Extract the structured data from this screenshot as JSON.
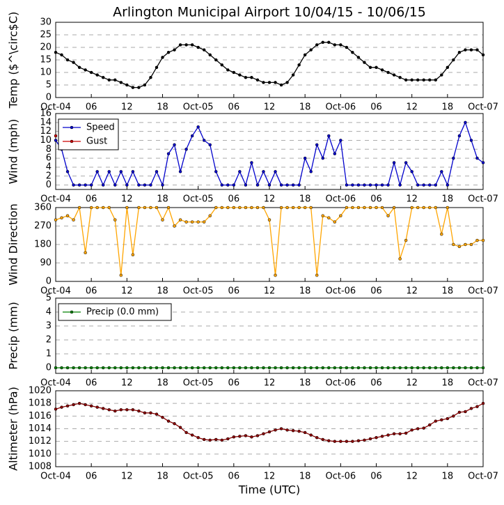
{
  "title": "Arlington Municipal Airport 10/04/15 - 10/06/15",
  "chart_data": [
    {
      "type": "line",
      "ylabel": "Temp ($^\\circ$C)",
      "x": [
        0,
        1,
        2,
        3,
        4,
        5,
        6,
        7,
        8,
        9,
        10,
        11,
        12,
        13,
        14,
        15,
        16,
        17,
        18,
        19,
        20,
        21,
        22,
        23,
        24,
        25,
        26,
        27,
        28,
        29,
        30,
        31,
        32,
        33,
        34,
        35,
        36,
        37,
        38,
        39,
        40,
        41,
        42,
        43,
        44,
        45,
        46,
        47,
        48,
        49,
        50,
        51,
        52,
        53,
        54,
        55,
        56,
        57,
        58,
        59,
        60,
        61,
        62,
        63,
        64,
        65,
        66,
        67,
        68,
        69,
        70,
        71,
        72
      ],
      "series": [
        {
          "name": "Temp",
          "color": "#000000",
          "values": [
            18,
            17,
            15,
            14,
            12,
            11,
            10,
            9,
            8,
            7,
            7,
            6,
            5,
            4,
            4,
            5,
            8,
            12,
            16,
            18,
            19,
            21,
            21,
            21,
            20,
            19,
            17,
            15,
            13,
            11,
            10,
            9,
            8,
            8,
            7,
            6,
            6,
            6,
            5,
            6,
            9,
            13,
            17,
            19,
            21,
            22,
            22,
            21,
            21,
            20,
            18,
            16,
            14,
            12,
            12,
            11,
            10,
            9,
            8,
            7,
            7,
            7,
            7,
            7,
            7,
            9,
            12,
            15,
            18,
            19,
            19,
            19,
            17
          ]
        }
      ],
      "xlim": [
        0,
        72
      ],
      "xticks": [
        {
          "value": 0,
          "label": "Oct-04"
        },
        {
          "value": 6,
          "label": "06"
        },
        {
          "value": 12,
          "label": "12"
        },
        {
          "value": 18,
          "label": "18"
        },
        {
          "value": 24,
          "label": "Oct-05"
        },
        {
          "value": 30,
          "label": "06"
        },
        {
          "value": 36,
          "label": "12"
        },
        {
          "value": 42,
          "label": "18"
        },
        {
          "value": 48,
          "label": "Oct-06"
        },
        {
          "value": 54,
          "label": "06"
        },
        {
          "value": 60,
          "label": "12"
        },
        {
          "value": 66,
          "label": "18"
        },
        {
          "value": 72,
          "label": "Oct-07"
        }
      ],
      "ylim": [
        0,
        30
      ],
      "yticks": [
        0,
        5,
        10,
        15,
        20,
        25,
        30
      ],
      "grid": true
    },
    {
      "type": "line",
      "ylabel": "Wind (mph)",
      "x": [
        0,
        1,
        2,
        3,
        4,
        5,
        6,
        7,
        8,
        9,
        10,
        11,
        12,
        13,
        14,
        15,
        16,
        17,
        18,
        19,
        20,
        21,
        22,
        23,
        24,
        25,
        26,
        27,
        28,
        29,
        30,
        31,
        32,
        33,
        34,
        35,
        36,
        37,
        38,
        39,
        40,
        41,
        42,
        43,
        44,
        45,
        46,
        47,
        48,
        49,
        50,
        51,
        52,
        53,
        54,
        55,
        56,
        57,
        58,
        59,
        60,
        61,
        62,
        63,
        64,
        65,
        66,
        67,
        68,
        69,
        70,
        71,
        72
      ],
      "series": [
        {
          "name": "Speed",
          "color": "#0000cc",
          "values": [
            10,
            8,
            3,
            0,
            0,
            0,
            0,
            3,
            0,
            3,
            0,
            3,
            0,
            3,
            0,
            0,
            0,
            3,
            0,
            7,
            9,
            3,
            8,
            11,
            13,
            10,
            9,
            3,
            0,
            0,
            0,
            3,
            0,
            5,
            0,
            3,
            0,
            3,
            0,
            0,
            0,
            0,
            6,
            3,
            9,
            6,
            11,
            7,
            10,
            0,
            0,
            0,
            0,
            0,
            0,
            0,
            0,
            5,
            0,
            5,
            3,
            0,
            0,
            0,
            0,
            3,
            0,
            6,
            11,
            14,
            10,
            6,
            5
          ]
        },
        {
          "name": "Gust",
          "color": "#cc0000",
          "values": [
            11,
            null,
            null,
            null,
            null,
            null,
            null,
            null,
            null,
            null,
            null,
            null,
            null,
            null,
            null,
            null,
            null,
            null,
            null,
            null,
            null,
            null,
            null,
            null,
            null,
            null,
            null,
            null,
            null,
            null,
            null,
            null,
            null,
            null,
            null,
            null,
            null,
            null,
            null,
            null,
            null,
            null,
            null,
            null,
            null,
            null,
            null,
            null,
            null,
            null,
            null,
            null,
            null,
            null,
            null,
            null,
            null,
            null,
            null,
            null,
            null,
            null,
            null,
            null,
            null,
            null,
            null,
            null,
            null,
            null,
            null,
            null,
            null
          ]
        }
      ],
      "xlim": [
        0,
        72
      ],
      "xticks": [
        {
          "value": 0,
          "label": "Oct-04"
        },
        {
          "value": 6,
          "label": "06"
        },
        {
          "value": 12,
          "label": "12"
        },
        {
          "value": 18,
          "label": "18"
        },
        {
          "value": 24,
          "label": "Oct-05"
        },
        {
          "value": 30,
          "label": "06"
        },
        {
          "value": 36,
          "label": "12"
        },
        {
          "value": 42,
          "label": "18"
        },
        {
          "value": 48,
          "label": "Oct-06"
        },
        {
          "value": 54,
          "label": "06"
        },
        {
          "value": 60,
          "label": "12"
        },
        {
          "value": 66,
          "label": "18"
        },
        {
          "value": 72,
          "label": "Oct-07"
        }
      ],
      "ylim": [
        -1,
        16
      ],
      "yticks": [
        0,
        2,
        4,
        6,
        8,
        10,
        12,
        14,
        16
      ],
      "grid": true,
      "legend": "upper left"
    },
    {
      "type": "line",
      "ylabel": "Wind Direction",
      "x": [
        0,
        1,
        2,
        3,
        4,
        5,
        6,
        7,
        8,
        9,
        10,
        11,
        12,
        13,
        14,
        15,
        16,
        17,
        18,
        19,
        20,
        21,
        22,
        23,
        24,
        25,
        26,
        27,
        28,
        29,
        30,
        31,
        32,
        33,
        34,
        35,
        36,
        37,
        38,
        39,
        40,
        41,
        42,
        43,
        44,
        45,
        46,
        47,
        48,
        49,
        50,
        51,
        52,
        53,
        54,
        55,
        56,
        57,
        58,
        59,
        60,
        61,
        62,
        63,
        64,
        65,
        66,
        67,
        68,
        69,
        70,
        71,
        72
      ],
      "series": [
        {
          "name": "Direction",
          "color": "#ffa500",
          "values": [
            300,
            310,
            320,
            300,
            360,
            140,
            360,
            360,
            360,
            360,
            300,
            30,
            360,
            130,
            360,
            360,
            360,
            360,
            300,
            360,
            270,
            300,
            290,
            290,
            290,
            290,
            320,
            360,
            360,
            360,
            360,
            360,
            360,
            360,
            360,
            360,
            300,
            30,
            360,
            360,
            360,
            360,
            360,
            360,
            30,
            320,
            310,
            290,
            320,
            360,
            360,
            360,
            360,
            360,
            360,
            360,
            320,
            360,
            110,
            200,
            360,
            360,
            360,
            360,
            360,
            230,
            360,
            180,
            170,
            180,
            180,
            200,
            200
          ]
        }
      ],
      "xlim": [
        0,
        72
      ],
      "xticks": [
        {
          "value": 0,
          "label": "Oct-04"
        },
        {
          "value": 6,
          "label": "06"
        },
        {
          "value": 12,
          "label": "12"
        },
        {
          "value": 18,
          "label": "18"
        },
        {
          "value": 24,
          "label": "Oct-05"
        },
        {
          "value": 30,
          "label": "06"
        },
        {
          "value": 36,
          "label": "12"
        },
        {
          "value": 42,
          "label": "18"
        },
        {
          "value": 48,
          "label": "Oct-06"
        },
        {
          "value": 54,
          "label": "06"
        },
        {
          "value": 60,
          "label": "12"
        },
        {
          "value": 66,
          "label": "18"
        },
        {
          "value": 72,
          "label": "Oct-07"
        }
      ],
      "ylim": [
        0,
        360
      ],
      "yticks": [
        0,
        90,
        180,
        270,
        360
      ],
      "grid": true
    },
    {
      "type": "line",
      "ylabel": "Precip (mm)",
      "x": [
        0,
        1,
        2,
        3,
        4,
        5,
        6,
        7,
        8,
        9,
        10,
        11,
        12,
        13,
        14,
        15,
        16,
        17,
        18,
        19,
        20,
        21,
        22,
        23,
        24,
        25,
        26,
        27,
        28,
        29,
        30,
        31,
        32,
        33,
        34,
        35,
        36,
        37,
        38,
        39,
        40,
        41,
        42,
        43,
        44,
        45,
        46,
        47,
        48,
        49,
        50,
        51,
        52,
        53,
        54,
        55,
        56,
        57,
        58,
        59,
        60,
        61,
        62,
        63,
        64,
        65,
        66,
        67,
        68,
        69,
        70,
        71,
        72
      ],
      "series": [
        {
          "name": "Precip (0.0 mm)",
          "color": "#008000",
          "values": [
            0,
            0,
            0,
            0,
            0,
            0,
            0,
            0,
            0,
            0,
            0,
            0,
            0,
            0,
            0,
            0,
            0,
            0,
            0,
            0,
            0,
            0,
            0,
            0,
            0,
            0,
            0,
            0,
            0,
            0,
            0,
            0,
            0,
            0,
            0,
            0,
            0,
            0,
            0,
            0,
            0,
            0,
            0,
            0,
            0,
            0,
            0,
            0,
            0,
            0,
            0,
            0,
            0,
            0,
            0,
            0,
            0,
            0,
            0,
            0,
            0,
            0,
            0,
            0,
            0,
            0,
            0,
            0,
            0,
            0,
            0,
            0,
            0
          ]
        }
      ],
      "xlim": [
        0,
        72
      ],
      "xticks": [
        {
          "value": 0,
          "label": "Oct-04"
        },
        {
          "value": 6,
          "label": "06"
        },
        {
          "value": 12,
          "label": "12"
        },
        {
          "value": 18,
          "label": "18"
        },
        {
          "value": 24,
          "label": "Oct-05"
        },
        {
          "value": 30,
          "label": "06"
        },
        {
          "value": 36,
          "label": "12"
        },
        {
          "value": 42,
          "label": "18"
        },
        {
          "value": 48,
          "label": "Oct-06"
        },
        {
          "value": 54,
          "label": "06"
        },
        {
          "value": 60,
          "label": "12"
        },
        {
          "value": 66,
          "label": "18"
        },
        {
          "value": 72,
          "label": "Oct-07"
        }
      ],
      "ylim": [
        -0.4,
        5
      ],
      "yticks": [
        0,
        1,
        2,
        3,
        4,
        5
      ],
      "grid": true,
      "legend": "upper left"
    },
    {
      "type": "line",
      "ylabel": "Altimeter (hPa)",
      "xlabel": "Time (UTC)",
      "x": [
        0,
        1,
        2,
        3,
        4,
        5,
        6,
        7,
        8,
        9,
        10,
        11,
        12,
        13,
        14,
        15,
        16,
        17,
        18,
        19,
        20,
        21,
        22,
        23,
        24,
        25,
        26,
        27,
        28,
        29,
        30,
        31,
        32,
        33,
        34,
        35,
        36,
        37,
        38,
        39,
        40,
        41,
        42,
        43,
        44,
        45,
        46,
        47,
        48,
        49,
        50,
        51,
        52,
        53,
        54,
        55,
        56,
        57,
        58,
        59,
        60,
        61,
        62,
        63,
        64,
        65,
        66,
        67,
        68,
        69,
        70,
        71,
        72
      ],
      "series": [
        {
          "name": "Altimeter",
          "color": "#8b0000",
          "values": [
            1017.1,
            1017.4,
            1017.6,
            1017.8,
            1018,
            1017.8,
            1017.6,
            1017.4,
            1017.2,
            1017,
            1016.8,
            1017,
            1017,
            1017,
            1016.8,
            1016.5,
            1016.5,
            1016.3,
            1015.8,
            1015.2,
            1014.8,
            1014.2,
            1013.4,
            1013,
            1012.6,
            1012.3,
            1012.2,
            1012.3,
            1012.2,
            1012.4,
            1012.7,
            1012.8,
            1012.9,
            1012.7,
            1012.9,
            1013.2,
            1013.5,
            1013.8,
            1014,
            1013.8,
            1013.7,
            1013.6,
            1013.4,
            1013,
            1012.6,
            1012.3,
            1012.1,
            1012,
            1012,
            1012,
            1012,
            1012.1,
            1012.2,
            1012.4,
            1012.6,
            1012.8,
            1013,
            1013.2,
            1013.2,
            1013.3,
            1013.8,
            1014,
            1014.1,
            1014.6,
            1015.2,
            1015.4,
            1015.6,
            1016,
            1016.6,
            1016.7,
            1017.2,
            1017.5,
            1018
          ]
        }
      ],
      "xlim": [
        0,
        72
      ],
      "xticks": [
        {
          "value": 0,
          "label": "Oct-04"
        },
        {
          "value": 6,
          "label": "06"
        },
        {
          "value": 12,
          "label": "12"
        },
        {
          "value": 18,
          "label": "18"
        },
        {
          "value": 24,
          "label": "Oct-05"
        },
        {
          "value": 30,
          "label": "06"
        },
        {
          "value": 36,
          "label": "12"
        },
        {
          "value": 42,
          "label": "18"
        },
        {
          "value": 48,
          "label": "Oct-06"
        },
        {
          "value": 54,
          "label": "06"
        },
        {
          "value": 60,
          "label": "12"
        },
        {
          "value": 66,
          "label": "18"
        },
        {
          "value": 72,
          "label": "Oct-07"
        }
      ],
      "ylim": [
        1008,
        1020
      ],
      "yticks": [
        1008,
        1010,
        1012,
        1014,
        1016,
        1018,
        1020
      ],
      "grid": true
    }
  ]
}
